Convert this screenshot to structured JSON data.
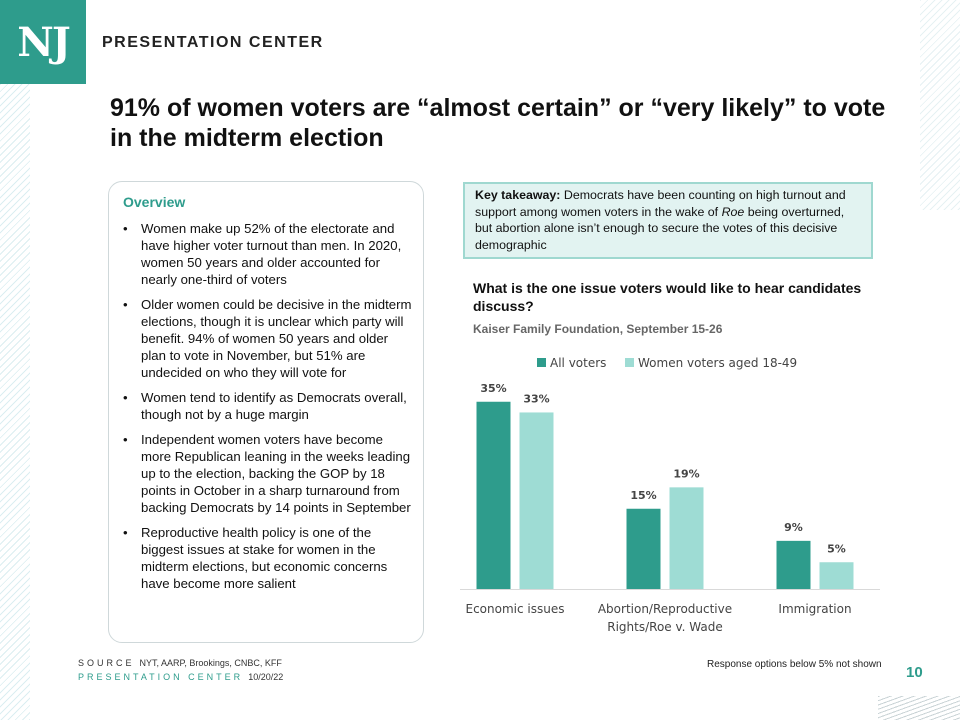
{
  "header": {
    "logo_text": "NJ",
    "brand": "PRESENTATION CENTER"
  },
  "title": "91% of women voters are “almost certain” or “very likely” to vote in the midterm election",
  "overview": {
    "heading": "Overview",
    "bullets": [
      "Women make up 52% of the electorate and have higher voter turnout than men. In 2020, women 50 years and older accounted for nearly one-third of voters",
      "Older women could be decisive in the midterm elections, though it is unclear which party will benefit. 94% of women 50 years and older plan to vote in November, but 51% are undecided on who they will vote for",
      "Women tend to identify as Democrats overall, though not by a huge margin",
      "Independent women voters have become more Republican leaning in the weeks leading up to the election, backing the GOP by 18 points in October in a sharp turnaround from backing Democrats by 14 points in September",
      "Reproductive health policy is one of the biggest issues at stake for women in the midterm elections, but economic concerns have become more salient"
    ]
  },
  "takeaway": {
    "label": "Key takeaway:",
    "text_1": " Democrats have been counting on high turnout and support among women voters in the wake of ",
    "italic": "Roe",
    "text_2": " being overturned, but abortion alone isn’t enough to secure the votes of this decisive demographic"
  },
  "chart_data": {
    "type": "bar",
    "title": "What is the one issue voters would like to hear candidates discuss?",
    "subtitle": "Kaiser Family Foundation, September 15-26",
    "categories": [
      "Economic issues",
      "Abortion/Reproductive Rights/Roe v. Wade",
      "Immigration"
    ],
    "category_lines": [
      [
        "Economic issues"
      ],
      [
        "Abortion/Reproductive",
        "Rights/Roe v. Wade"
      ],
      [
        "Immigration"
      ]
    ],
    "series": [
      {
        "name": "All voters",
        "values": [
          35,
          15,
          9
        ],
        "labels": [
          "35%",
          "15%",
          "9%"
        ],
        "color": "#2e9c8c"
      },
      {
        "name": "Women voters aged 18-49",
        "values": [
          33,
          19,
          5
        ],
        "labels": [
          "33%",
          "19%",
          "5%"
        ],
        "color": "#9edcd4"
      }
    ],
    "ylim": [
      0,
      40
    ],
    "legend": "top",
    "grid": false
  },
  "footer": {
    "source_label": "SOURCE",
    "source_text": "NYT, AARP, Brookings, CNBC, KFF",
    "pc_label": "PRESENTATION CENTER",
    "date": "10/20/22",
    "note": "Response options below 5% not shown",
    "page": "10"
  }
}
